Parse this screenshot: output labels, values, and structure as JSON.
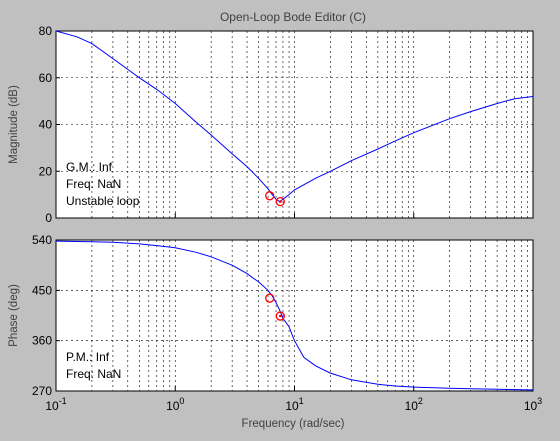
{
  "window": {
    "title": "Open-Loop Bode Editor (C)"
  },
  "chart_data": [
    {
      "type": "line",
      "panel": "magnitude",
      "xscale": "log",
      "xlim": [
        0.1,
        1000
      ],
      "ylim": [
        0,
        80
      ],
      "yticks": [
        0,
        20,
        40,
        60,
        80
      ],
      "ylabel": "Magnitude (dB)",
      "grid": true,
      "series": [
        {
          "color": "#0000ff",
          "x": [
            0.1,
            0.15,
            0.2,
            0.3,
            0.5,
            0.7,
            1,
            1.5,
            2,
            3,
            4,
            5,
            6,
            6.5,
            7,
            7.5,
            8,
            9,
            10,
            15,
            20,
            30,
            50,
            70,
            100,
            200,
            300,
            500,
            700,
            1000
          ],
          "y": [
            80,
            77.5,
            74.6,
            68.2,
            60,
            55,
            49,
            41,
            35.5,
            27.5,
            22,
            17,
            12.5,
            10,
            8,
            7,
            8,
            10,
            12,
            17,
            20,
            24.5,
            29.5,
            33,
            36.5,
            42.5,
            45.5,
            49,
            51,
            52
          ]
        }
      ],
      "markers": [
        {
          "x": 6.2,
          "y": 9.5,
          "shape": "circle",
          "color": "#ff0000"
        },
        {
          "x": 7.6,
          "y": 7,
          "shape": "circle-dot",
          "color": "#ff0000"
        }
      ],
      "annotation": [
        "G.M.: Inf",
        "Freq: NaN",
        "Unstable loop"
      ]
    },
    {
      "type": "line",
      "panel": "phase",
      "xscale": "log",
      "xlim": [
        0.1,
        1000
      ],
      "ylim": [
        270,
        540
      ],
      "yticks": [
        270,
        360,
        450,
        540
      ],
      "ylabel": "Phase (deg)",
      "xlabel": "Frequency (rad/sec)",
      "xticks": [
        "10^-1",
        "10^0",
        "10^1",
        "10^2",
        "10^3"
      ],
      "grid": true,
      "series": [
        {
          "color": "#0000ff",
          "x": [
            0.1,
            0.2,
            0.3,
            0.5,
            0.7,
            1,
            1.5,
            2,
            3,
            4,
            5,
            6,
            6.5,
            7,
            7.5,
            8,
            9,
            10,
            12,
            15,
            20,
            30,
            50,
            70,
            100,
            200,
            300,
            500,
            1000
          ],
          "y": [
            538,
            537,
            536,
            533,
            530,
            526,
            518,
            510,
            495,
            480,
            465,
            450,
            440,
            428,
            415,
            400,
            385,
            360,
            330,
            315,
            302,
            290,
            282,
            279,
            277,
            275,
            274,
            273,
            272
          ]
        }
      ],
      "markers": [
        {
          "x": 6.2,
          "y": 436,
          "shape": "circle",
          "color": "#ff0000"
        },
        {
          "x": 7.6,
          "y": 404,
          "shape": "circle-dot",
          "color": "#ff0000"
        }
      ],
      "annotation": [
        "P.M.: Inf",
        "Freq: NaN"
      ]
    }
  ]
}
